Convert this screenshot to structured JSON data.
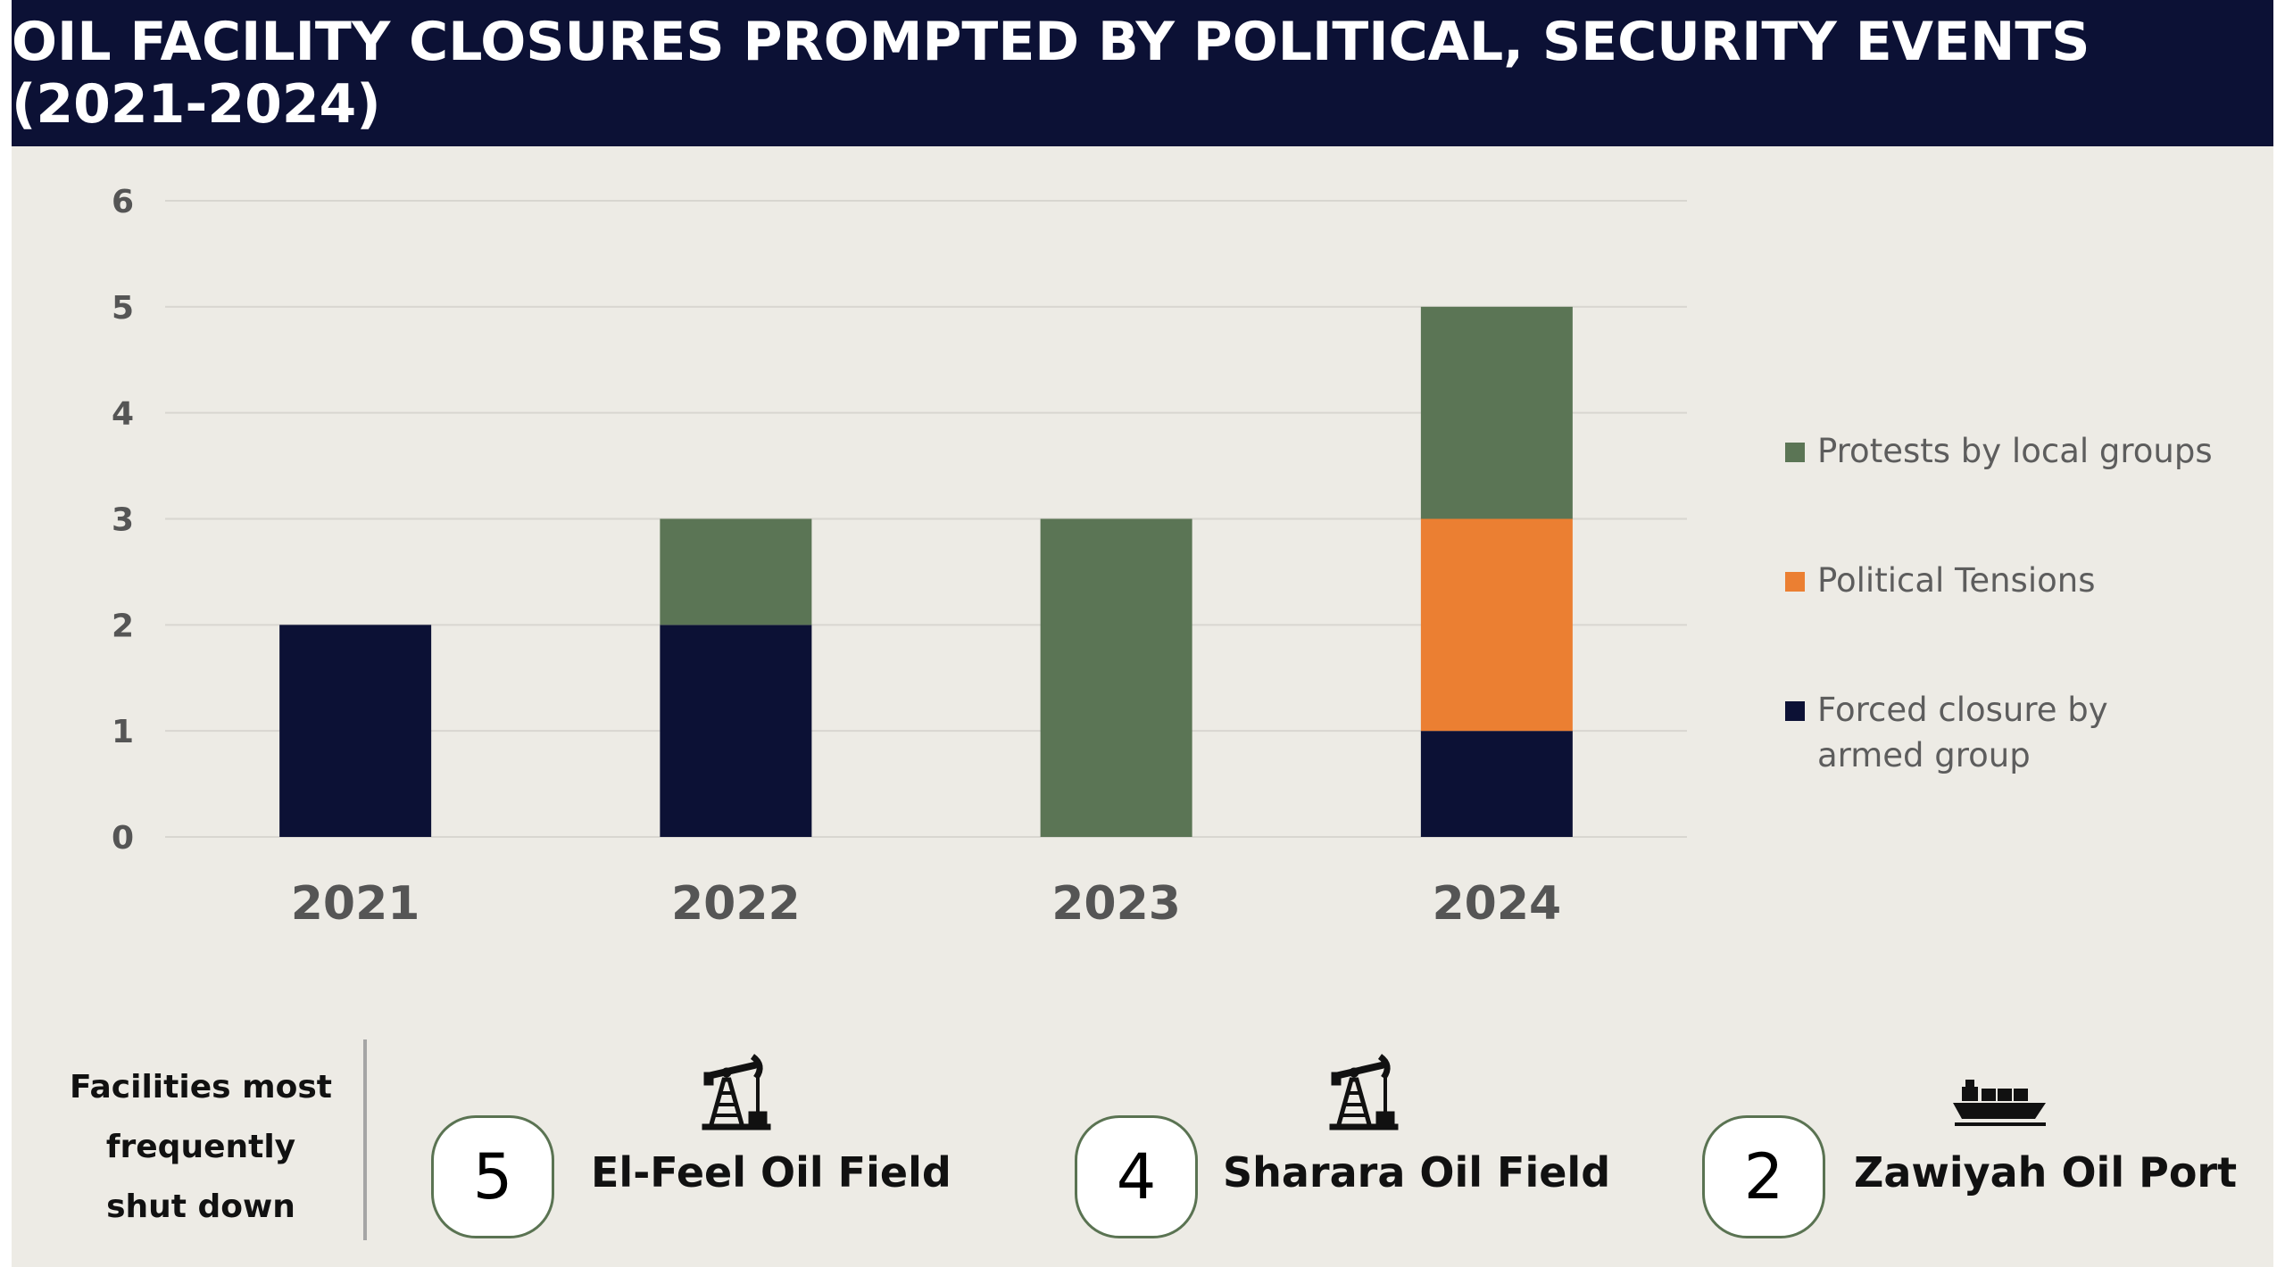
{
  "title": "OIL FACILITY CLOSURES PROMPTED BY POLITICAL, SECURITY EVENTS (2021-2024)",
  "colors": {
    "header_bg": "#0c1135",
    "background": "#edebe5",
    "protests": "#5b7555",
    "political": "#eb7f32",
    "forced": "#0c1135",
    "badge_border": "#5a7352"
  },
  "chart_data": {
    "type": "bar",
    "stacked": true,
    "categories": [
      "2021",
      "2022",
      "2023",
      "2024"
    ],
    "series": [
      {
        "name": "Forced closure by armed group",
        "color": "#0c1135",
        "values": [
          2,
          2,
          0,
          1
        ]
      },
      {
        "name": "Political Tensions",
        "color": "#eb7f32",
        "values": [
          0,
          0,
          0,
          2
        ]
      },
      {
        "name": "Protests by local groups",
        "color": "#5b7555",
        "values": [
          0,
          1,
          3,
          2
        ]
      }
    ],
    "ylim": [
      0,
      6
    ],
    "yticks": [
      "0",
      "1",
      "2",
      "3",
      "4",
      "5",
      "6"
    ],
    "grid": true,
    "legend_position": "right",
    "legend_order": [
      "Protests by local groups",
      "Political Tensions",
      "Forced closure by armed group"
    ]
  },
  "facilities": {
    "label_lines": [
      "Facilities most",
      "frequently",
      "shut down"
    ],
    "items": [
      {
        "count": "5",
        "name": "El-Feel Oil Field",
        "icon": "oil-pump-icon"
      },
      {
        "count": "4",
        "name": "Sharara Oil Field",
        "icon": "oil-pump-icon"
      },
      {
        "count": "2",
        "name": "Zawiyah Oil Port",
        "icon": "cargo-ship-icon"
      }
    ]
  }
}
